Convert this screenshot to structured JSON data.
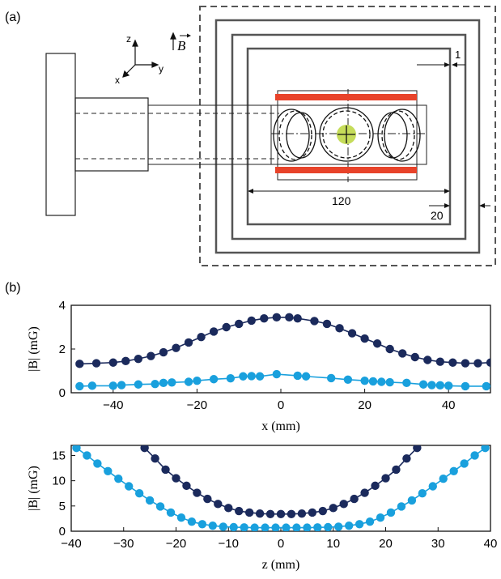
{
  "panel_a": {
    "label": "(a)",
    "axes": {
      "z": "z",
      "y": "y",
      "x": "x",
      "field": "B"
    },
    "dims": {
      "gap": "1",
      "length": "120",
      "spacing": "20"
    }
  },
  "panel_b_label": "(b)",
  "colors": {
    "dark_series": "#1b2a5c",
    "light_series": "#19a0dd",
    "coil": "#e8432a",
    "atoms": "#c5dc5a"
  },
  "chart_data": [
    {
      "type": "line",
      "xlabel": "x (mm)",
      "ylabel": "|B| (mG)",
      "xlim": [
        -50,
        50
      ],
      "ylim": [
        0,
        4
      ],
      "xticks": [
        -40,
        -20,
        0,
        20,
        40
      ],
      "yticks": [
        0,
        2,
        4
      ],
      "grid": false,
      "series": [
        {
          "color": "#1b2a5c",
          "x": [
            -48,
            -44,
            -40,
            -37,
            -34,
            -31,
            -28,
            -25,
            -22,
            -19,
            -16,
            -13,
            -10,
            -7,
            -4,
            -1,
            2,
            4,
            8,
            11,
            14,
            17,
            20,
            23,
            26,
            29,
            32,
            35,
            38,
            41,
            44,
            47,
            50
          ],
          "y": [
            1.32,
            1.35,
            1.38,
            1.45,
            1.55,
            1.68,
            1.85,
            2.05,
            2.3,
            2.55,
            2.8,
            3.0,
            3.15,
            3.3,
            3.4,
            3.45,
            3.45,
            3.4,
            3.28,
            3.15,
            2.95,
            2.72,
            2.48,
            2.25,
            2.0,
            1.8,
            1.63,
            1.5,
            1.42,
            1.38,
            1.35,
            1.35,
            1.38
          ]
        },
        {
          "color": "#19a0dd",
          "x": [
            -48,
            -45,
            -40,
            -38,
            -34,
            -30,
            -28,
            -26,
            -22,
            -20,
            -16,
            -12,
            -9,
            -7,
            -5,
            -1,
            4,
            6,
            12,
            16,
            20,
            22,
            24,
            26,
            30,
            34,
            36,
            38,
            40,
            44,
            49
          ],
          "y": [
            0.3,
            0.32,
            0.32,
            0.35,
            0.38,
            0.4,
            0.45,
            0.47,
            0.5,
            0.55,
            0.62,
            0.66,
            0.75,
            0.76,
            0.75,
            0.85,
            0.78,
            0.75,
            0.67,
            0.6,
            0.55,
            0.52,
            0.5,
            0.48,
            0.45,
            0.38,
            0.35,
            0.34,
            0.32,
            0.3,
            0.3
          ]
        }
      ]
    },
    {
      "type": "line",
      "xlabel": "z (mm)",
      "ylabel": "|B| (mG)",
      "xlim": [
        -40,
        40
      ],
      "ylim": [
        0,
        17
      ],
      "xticks": [
        -40,
        -30,
        -20,
        -10,
        0,
        10,
        20,
        30,
        40
      ],
      "yticks": [
        0,
        5,
        10,
        15
      ],
      "grid": false,
      "series": [
        {
          "color": "#1b2a5c",
          "x": [
            -26,
            -24,
            -22,
            -20,
            -18,
            -16,
            -14,
            -12,
            -10,
            -8,
            -6,
            -4,
            -2,
            0,
            2,
            4,
            6,
            8,
            10,
            12,
            14,
            16,
            18,
            20,
            22,
            24,
            26
          ],
          "y": [
            16.5,
            14.4,
            12.2,
            10.5,
            9.0,
            7.6,
            6.4,
            5.4,
            4.6,
            4.0,
            3.7,
            3.5,
            3.4,
            3.4,
            3.4,
            3.5,
            3.7,
            4.0,
            4.6,
            5.4,
            6.4,
            7.6,
            9.0,
            10.5,
            12.2,
            14.4,
            16.5
          ]
        },
        {
          "color": "#19a0dd",
          "x": [
            -39,
            -37,
            -35,
            -33,
            -31,
            -29,
            -27,
            -25,
            -23,
            -21,
            -19,
            -17,
            -15,
            -13,
            -11,
            -9,
            -7,
            -5,
            -3,
            -1,
            1,
            3,
            5,
            7,
            9,
            11,
            13,
            15,
            17,
            19,
            21,
            23,
            25,
            27,
            29,
            31,
            33,
            35,
            37,
            39
          ],
          "y": [
            16.5,
            15.0,
            13.4,
            11.9,
            10.4,
            8.9,
            7.5,
            6.1,
            4.9,
            3.7,
            2.7,
            1.9,
            1.4,
            1.1,
            0.9,
            0.8,
            0.75,
            0.7,
            0.7,
            0.7,
            0.7,
            0.7,
            0.7,
            0.75,
            0.8,
            0.9,
            1.1,
            1.4,
            1.9,
            2.7,
            3.7,
            4.9,
            6.1,
            7.5,
            8.9,
            10.4,
            11.9,
            13.4,
            15.0,
            16.5
          ]
        }
      ]
    }
  ]
}
